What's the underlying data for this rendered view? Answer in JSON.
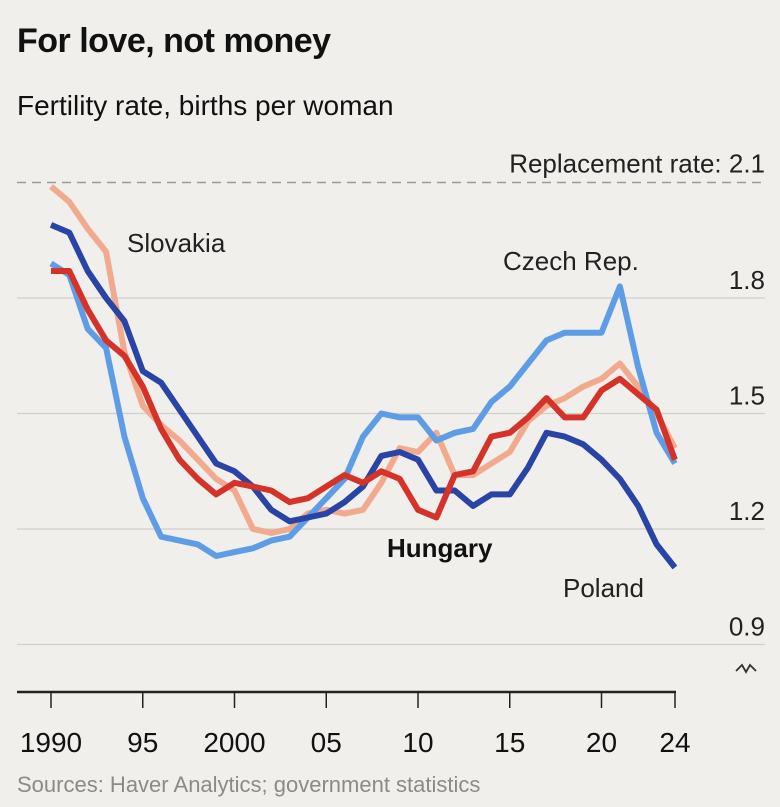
{
  "header": {
    "title": "For love, not money",
    "subtitle": "Fertility rate, births per woman"
  },
  "footer": {
    "source": "Sources: Haver Analytics; government statistics"
  },
  "chart_data": {
    "type": "line",
    "title": "For love, not money",
    "subtitle": "Fertility rate, births per woman",
    "xlabel": "",
    "ylabel": "",
    "x": [
      1990,
      1991,
      1992,
      1993,
      1994,
      1995,
      1996,
      1997,
      1998,
      1999,
      2000,
      2001,
      2002,
      2003,
      2004,
      2005,
      2006,
      2007,
      2008,
      2009,
      2010,
      2011,
      2012,
      2013,
      2014,
      2015,
      2016,
      2017,
      2018,
      2019,
      2020,
      2021,
      2022,
      2023,
      2024
    ],
    "xlim": [
      1990,
      2024
    ],
    "ylim": [
      0.9,
      2.1
    ],
    "x_ticks": [
      1990,
      1995,
      2000,
      2005,
      2010,
      2015,
      2020,
      2024
    ],
    "x_tick_labels": [
      "1990",
      "95",
      "2000",
      "05",
      "10",
      "15",
      "20",
      "24"
    ],
    "y_ticks": [
      0.9,
      1.2,
      1.5,
      1.8
    ],
    "y_tick_labels": [
      "0.9",
      "1.2",
      "1.5",
      "1.8"
    ],
    "y_axis_side": "right",
    "y_axis_broken": true,
    "grid": true,
    "reference_line": {
      "value": 2.1,
      "label": "Replacement rate: 2.1",
      "style": "dashed",
      "color": "#999999"
    },
    "series": [
      {
        "name": "Slovakia",
        "color": "#f2aa8e",
        "bold_label": false,
        "values": [
          2.09,
          2.05,
          1.98,
          1.92,
          1.66,
          1.52,
          1.47,
          1.43,
          1.38,
          1.33,
          1.3,
          1.2,
          1.19,
          1.2,
          1.24,
          1.25,
          1.24,
          1.25,
          1.32,
          1.41,
          1.4,
          1.45,
          1.34,
          1.34,
          1.37,
          1.4,
          1.48,
          1.52,
          1.54,
          1.57,
          1.59,
          1.63,
          1.57,
          1.5,
          1.41
        ]
      },
      {
        "name": "Czech Rep.",
        "color": "#5e9de6",
        "bold_label": false,
        "values": [
          1.89,
          1.86,
          1.72,
          1.67,
          1.44,
          1.28,
          1.18,
          1.17,
          1.16,
          1.13,
          1.14,
          1.15,
          1.17,
          1.18,
          1.23,
          1.28,
          1.33,
          1.44,
          1.5,
          1.49,
          1.49,
          1.43,
          1.45,
          1.46,
          1.53,
          1.57,
          1.63,
          1.69,
          1.71,
          1.71,
          1.71,
          1.83,
          1.62,
          1.45,
          1.37
        ]
      },
      {
        "name": "Poland",
        "color": "#2a44a6",
        "bold_label": false,
        "values": [
          1.99,
          1.97,
          1.87,
          1.8,
          1.74,
          1.61,
          1.58,
          1.51,
          1.44,
          1.37,
          1.35,
          1.31,
          1.25,
          1.22,
          1.23,
          1.24,
          1.27,
          1.31,
          1.39,
          1.4,
          1.38,
          1.3,
          1.3,
          1.26,
          1.29,
          1.29,
          1.36,
          1.45,
          1.44,
          1.42,
          1.38,
          1.33,
          1.26,
          1.16,
          1.1
        ]
      },
      {
        "name": "Hungary",
        "color": "#d5322a",
        "bold_label": true,
        "values": [
          1.87,
          1.87,
          1.77,
          1.69,
          1.65,
          1.57,
          1.46,
          1.38,
          1.33,
          1.29,
          1.32,
          1.31,
          1.3,
          1.27,
          1.28,
          1.31,
          1.34,
          1.32,
          1.35,
          1.33,
          1.25,
          1.23,
          1.34,
          1.35,
          1.44,
          1.45,
          1.49,
          1.54,
          1.49,
          1.49,
          1.56,
          1.59,
          1.55,
          1.51,
          1.38
        ]
      }
    ]
  }
}
